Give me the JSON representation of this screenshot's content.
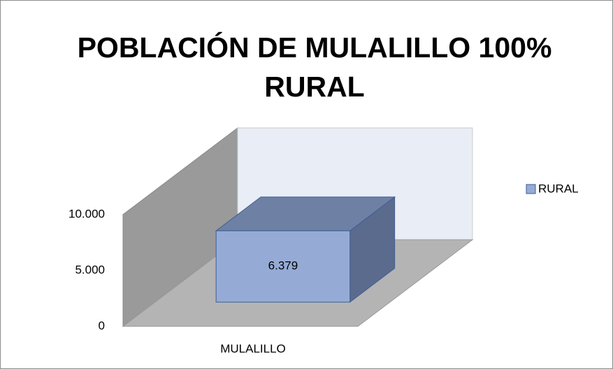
{
  "chart_data": {
    "type": "bar3d",
    "title": "POBLACIÓN DE MULALILLO 100% RURAL",
    "categories": [
      "MULALILLO"
    ],
    "series": [
      {
        "name": "RURAL",
        "color": "#95abd6",
        "values": [
          6379
        ],
        "value_labels": [
          "6.379"
        ]
      }
    ],
    "ylim": [
      0,
      10000
    ],
    "yticks": [
      0,
      {
        "value": 5000,
        "label": "5.000"
      },
      {
        "value": 10000,
        "label": "10.000"
      }
    ],
    "legend": "right"
  }
}
